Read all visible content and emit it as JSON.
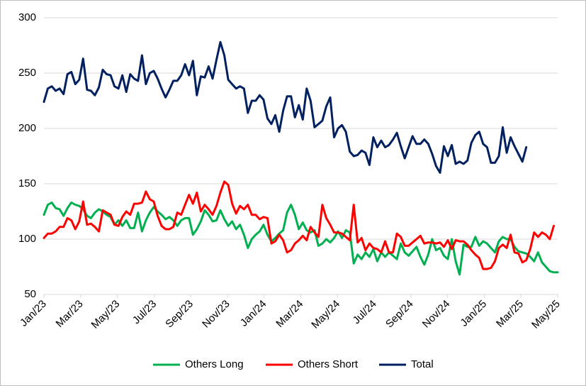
{
  "chart_data": {
    "type": "line",
    "title": "",
    "xlabel": "",
    "ylabel": "",
    "ylim": [
      50,
      300
    ],
    "yticks": [
      50,
      100,
      150,
      200,
      250,
      300
    ],
    "xticklabels": [
      "Jan/23",
      "Mar/23",
      "May/23",
      "Jul/23",
      "Sep/23",
      "Nov/23",
      "Jan/24",
      "Mar/24",
      "May/24",
      "Jul/24",
      "Sep/24",
      "Nov/24",
      "Jan/25",
      "Mar/25",
      "May/25"
    ],
    "grid": "horizontal",
    "legend": "bottom",
    "x_start": "2023-01-01",
    "x_step": "week",
    "series": [
      {
        "name": "Others Long",
        "color": "#00b050",
        "values": [
          122,
          131,
          133,
          128,
          127,
          121,
          128,
          133,
          131,
          130,
          127,
          121,
          119,
          124,
          127,
          125,
          122,
          120,
          113,
          117,
          112,
          117,
          110,
          110,
          124,
          107,
          117,
          124,
          129,
          125,
          122,
          118,
          120,
          117,
          112,
          117,
          119,
          119,
          104,
          109,
          116,
          126,
          122,
          116,
          117,
          126,
          118,
          112,
          116,
          109,
          113,
          104,
          92,
          100,
          104,
          107,
          113,
          104,
          98,
          101,
          105,
          108,
          124,
          131,
          122,
          109,
          115,
          108,
          106,
          108,
          94,
          96,
          100,
          97,
          101,
          107,
          101,
          108,
          106,
          78,
          86,
          82,
          88,
          84,
          91,
          80,
          88,
          84,
          88,
          85,
          82,
          96,
          88,
          85,
          89,
          93,
          84,
          77,
          86,
          100,
          90,
          92,
          85,
          82,
          100,
          80,
          68,
          95,
          93,
          93,
          102,
          94,
          98,
          96,
          92,
          88,
          98,
          102,
          100,
          100,
          93,
          89,
          88,
          87,
          84,
          80,
          88,
          79,
          75,
          71,
          70,
          70
        ]
      },
      {
        "name": "Others Short",
        "color": "#ff0000",
        "values": [
          101,
          105,
          105,
          107,
          111,
          111,
          119,
          117,
          109,
          116,
          134,
          113,
          114,
          111,
          107,
          126,
          124,
          122,
          113,
          112,
          120,
          125,
          122,
          132,
          132,
          133,
          143,
          136,
          134,
          121,
          112,
          109,
          109,
          111,
          124,
          122,
          131,
          140,
          132,
          142,
          125,
          131,
          127,
          122,
          130,
          142,
          152,
          149,
          132,
          123,
          130,
          127,
          131,
          122,
          122,
          118,
          120,
          119,
          96,
          98,
          104,
          99,
          88,
          90,
          96,
          99,
          103,
          99,
          111,
          106,
          102,
          131,
          119,
          113,
          106,
          106,
          105,
          102,
          99,
          131,
          97,
          101,
          90,
          96,
          92,
          91,
          88,
          98,
          88,
          88,
          105,
          102,
          94,
          94,
          97,
          100,
          103,
          96,
          97,
          97,
          96,
          97,
          93,
          99,
          91,
          99,
          98,
          98,
          95,
          90,
          86,
          83,
          73,
          73,
          74,
          80,
          92,
          95,
          92,
          104,
          88,
          87,
          79,
          81,
          91,
          106,
          102,
          106,
          104,
          100,
          112
        ]
      },
      {
        "name": "Total",
        "color": "#002060",
        "values": [
          224,
          236,
          238,
          234,
          236,
          231,
          249,
          251,
          240,
          244,
          263,
          235,
          234,
          230,
          237,
          253,
          249,
          248,
          238,
          236,
          248,
          233,
          249,
          245,
          243,
          266,
          240,
          250,
          252,
          245,
          236,
          228,
          235,
          243,
          243,
          248,
          258,
          248,
          261,
          230,
          247,
          246,
          256,
          245,
          262,
          278,
          266,
          244,
          240,
          236,
          238,
          236,
          214,
          225,
          225,
          230,
          226,
          209,
          204,
          212,
          197,
          216,
          229,
          229,
          210,
          221,
          208,
          236,
          225,
          201,
          204,
          207,
          220,
          228,
          192,
          200,
          203,
          197,
          179,
          175,
          176,
          180,
          178,
          167,
          192,
          183,
          189,
          183,
          185,
          190,
          196,
          184,
          173,
          183,
          193,
          186,
          186,
          190,
          186,
          177,
          166,
          160,
          184,
          175,
          185,
          168,
          170,
          168,
          171,
          187,
          194,
          197,
          186,
          183,
          169,
          169,
          175,
          201,
          178,
          192,
          184,
          177,
          170,
          183
        ]
      }
    ]
  }
}
